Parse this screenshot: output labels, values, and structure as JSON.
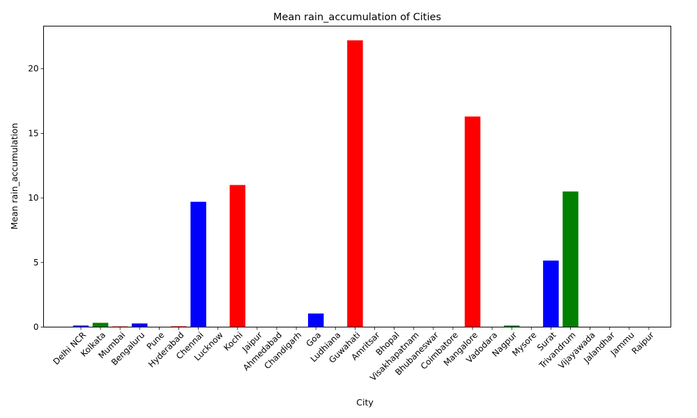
{
  "chart_data": {
    "type": "bar",
    "title": "Mean rain_accumulation of Cities",
    "xlabel": "City",
    "ylabel": "Mean rain_accumulation",
    "ylim": [
      0,
      23.3
    ],
    "yticks": [
      0,
      5,
      10,
      15,
      20
    ],
    "grid": false,
    "categories": [
      "Delhi NCR",
      "Kolkata",
      "Mumbai",
      "Bengaluru",
      "Pune",
      "Hyderabad",
      "Chennai",
      "Lucknow",
      "Kochi",
      "Jaipur",
      "Ahmedabad",
      "Chandigarh",
      "Goa",
      "Ludhiana",
      "Guwahati",
      "Amritsar",
      "Bhopal",
      "Visakhapatnam",
      "Bhubaneswar",
      "Coimbatore",
      "Mangalore",
      "Vadodara",
      "Nagpur",
      "Mysore",
      "Surat",
      "Trivandrum",
      "Vijayawada",
      "Jalandhar",
      "Jammu",
      "Raipur"
    ],
    "values": [
      0.12,
      0.33,
      0.05,
      0.28,
      0.0,
      0.06,
      9.7,
      0.0,
      11.0,
      0.0,
      0.0,
      0.0,
      1.05,
      0.0,
      22.2,
      0.0,
      0.0,
      0.0,
      0.0,
      0.0,
      16.3,
      0.0,
      0.12,
      0.0,
      5.15,
      10.5,
      0.0,
      0.0,
      0.0,
      0.0
    ],
    "colors": [
      "#0000ff",
      "#008000",
      "#ff0000",
      "#0000ff",
      "#008000",
      "#ff0000",
      "#0000ff",
      "#008000",
      "#ff0000",
      "#0000ff",
      "#008000",
      "#ff0000",
      "#0000ff",
      "#008000",
      "#ff0000",
      "#0000ff",
      "#008000",
      "#ff0000",
      "#0000ff",
      "#008000",
      "#ff0000",
      "#0000ff",
      "#008000",
      "#ff0000",
      "#0000ff",
      "#008000",
      "#ff0000",
      "#0000ff",
      "#008000",
      "#ff0000"
    ]
  }
}
